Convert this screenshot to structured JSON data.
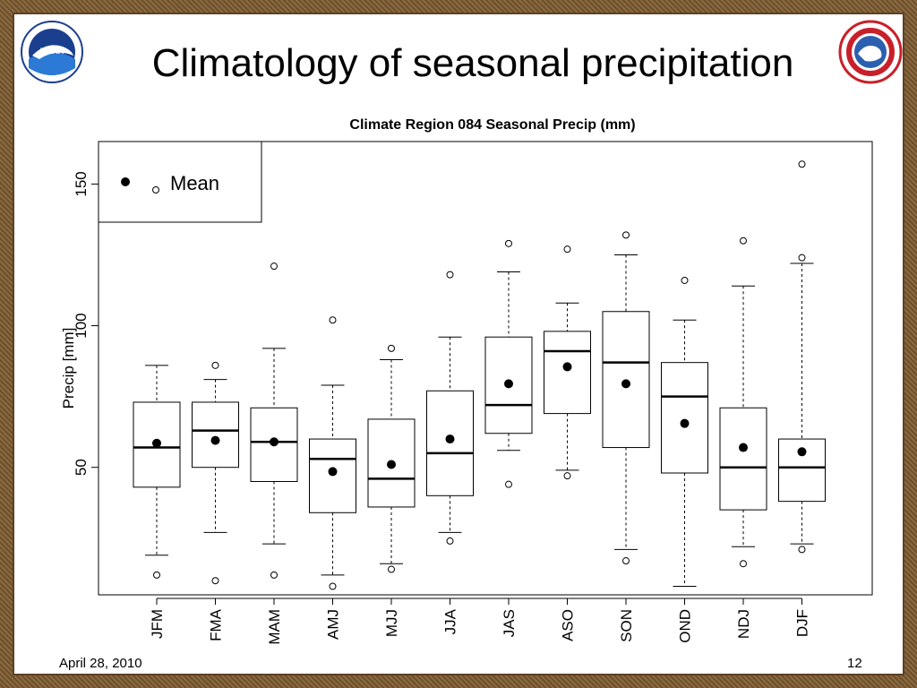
{
  "slide": {
    "title": "Climatology of seasonal precipitation",
    "footer_date": "April 28, 2010",
    "page_number": "12",
    "left_logo": "noaa-logo",
    "right_logo": "national-weather-service-logo"
  },
  "chart_data": {
    "type": "boxplot",
    "title": "Climate Region 084 Seasonal Precip (mm)",
    "xlabel": "",
    "ylabel": "Precip [mm]",
    "ylim": [
      5,
      165
    ],
    "yticks": [
      50,
      100,
      150
    ],
    "legend": {
      "entries": [
        "Mean"
      ],
      "placement": "top-left"
    },
    "categories": [
      "JFM",
      "FMA",
      "MAM",
      "AMJ",
      "MJJ",
      "JJA",
      "JAS",
      "ASO",
      "SON",
      "OND",
      "NDJ",
      "DJF"
    ],
    "boxes": [
      {
        "whisker_low": 19,
        "q1": 43,
        "median": 57,
        "q3": 73,
        "whisker_high": 86,
        "mean": 58.5,
        "outliers": [
          12
        ]
      },
      {
        "whisker_low": 27,
        "q1": 50,
        "median": 63,
        "q3": 73,
        "whisker_high": 81,
        "mean": 59.5,
        "outliers": [
          10,
          86
        ]
      },
      {
        "whisker_low": 23,
        "q1": 45,
        "median": 59,
        "q3": 71,
        "whisker_high": 92,
        "mean": 59,
        "outliers": [
          12,
          121
        ]
      },
      {
        "whisker_low": 12,
        "q1": 34,
        "median": 53,
        "q3": 60,
        "whisker_high": 79,
        "mean": 48.5,
        "outliers": [
          8,
          102
        ]
      },
      {
        "whisker_low": 16,
        "q1": 36,
        "median": 46,
        "q3": 67,
        "whisker_high": 88,
        "mean": 51,
        "outliers": [
          14,
          92
        ]
      },
      {
        "whisker_low": 27,
        "q1": 40,
        "median": 55,
        "q3": 77,
        "whisker_high": 96,
        "mean": 60,
        "outliers": [
          24,
          118
        ]
      },
      {
        "whisker_low": 56,
        "q1": 62,
        "median": 72,
        "q3": 96,
        "whisker_high": 119,
        "mean": 79.5,
        "outliers": [
          44,
          129
        ]
      },
      {
        "whisker_low": 49,
        "q1": 69,
        "median": 91,
        "q3": 98,
        "whisker_high": 108,
        "mean": 85.5,
        "outliers": [
          47,
          127
        ]
      },
      {
        "whisker_low": 21,
        "q1": 57,
        "median": 87,
        "q3": 105,
        "whisker_high": 125,
        "mean": 79.5,
        "outliers": [
          17,
          132
        ]
      },
      {
        "whisker_low": 8,
        "q1": 48,
        "median": 75,
        "q3": 87,
        "whisker_high": 102,
        "mean": 65.5,
        "outliers": [
          116
        ]
      },
      {
        "whisker_low": 22,
        "q1": 35,
        "median": 50,
        "q3": 71,
        "whisker_high": 114,
        "mean": 57,
        "outliers": [
          16,
          130
        ]
      },
      {
        "whisker_low": 23,
        "q1": 38,
        "median": 50,
        "q3": 60,
        "whisker_high": 122,
        "mean": 55.5,
        "outliers": [
          21,
          124,
          157
        ]
      }
    ]
  }
}
